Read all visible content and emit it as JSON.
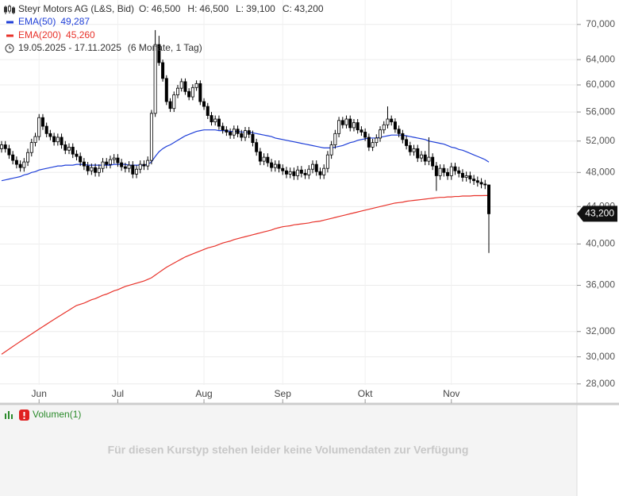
{
  "chart_data": {
    "type": "candlestick",
    "title": "Steyr Motors AG (L&S, Bid)",
    "ohlc_labels": [
      {
        "key": "O:",
        "label": "46,500"
      },
      {
        "key": "H:",
        "label": "46,500"
      },
      {
        "key": "L:",
        "label": "39,100"
      },
      {
        "key": "C:",
        "label": "43,200"
      }
    ],
    "period": "19.05.2025 - 17.11.2025",
    "interval": "(6 Monate, 1 Tag)",
    "categories": [
      null,
      null,
      null,
      null,
      null,
      null,
      null,
      null,
      null,
      null,
      "Jun",
      null,
      null,
      null,
      null,
      null,
      null,
      null,
      null,
      null,
      null,
      null,
      null,
      null,
      null,
      null,
      null,
      null,
      null,
      null,
      null,
      "Jul",
      null,
      null,
      null,
      null,
      null,
      null,
      null,
      null,
      null,
      null,
      null,
      null,
      null,
      null,
      null,
      null,
      null,
      null,
      null,
      null,
      null,
      null,
      "Aug",
      null,
      null,
      null,
      null,
      null,
      null,
      null,
      null,
      null,
      null,
      null,
      null,
      null,
      null,
      null,
      null,
      null,
      null,
      null,
      null,
      "Sep",
      null,
      null,
      null,
      null,
      null,
      null,
      null,
      null,
      null,
      null,
      null,
      null,
      null,
      null,
      null,
      null,
      null,
      null,
      null,
      null,
      null,
      "Okt",
      null,
      null,
      null,
      null,
      null,
      null,
      null,
      null,
      null,
      null,
      null,
      null,
      null,
      null,
      null,
      null,
      null,
      null,
      null,
      null,
      null,
      null,
      "Nov",
      null,
      null,
      null,
      null,
      null,
      null,
      null,
      null,
      null,
      null
    ],
    "open": [
      51000,
      51500,
      51000,
      50200,
      49500,
      49000,
      48600,
      49300,
      50500,
      51800,
      52600,
      55200,
      54000,
      53000,
      52600,
      51900,
      52500,
      51500,
      50800,
      51200,
      50300,
      50000,
      49300,
      48800,
      48200,
      48600,
      48000,
      48500,
      49300,
      49000,
      49600,
      49800,
      49200,
      48700,
      48500,
      48900,
      47800,
      48400,
      49000,
      48800,
      49500,
      55800,
      66500,
      63500,
      61000,
      57500,
      56500,
      58500,
      59500,
      60500,
      59000,
      58200,
      59600,
      60200,
      57500,
      56800,
      55500,
      54600,
      55000,
      54000,
      53500,
      53200,
      52800,
      53600,
      53000,
      52500,
      53400,
      52900,
      51800,
      50600,
      49400,
      49900,
      49200,
      48600,
      49000,
      48500,
      48200,
      47800,
      48100,
      47600,
      48300,
      47900,
      47700,
      48400,
      49000,
      48100,
      47700,
      48500,
      50200,
      51500,
      53000,
      54800,
      54200,
      55000,
      53800,
      54500,
      53500,
      53200,
      52500,
      51200,
      51800,
      52400,
      53500,
      54200,
      55000,
      54600,
      53600,
      53000,
      52200,
      51400,
      50600,
      51000,
      49800,
      50200,
      49400,
      49900,
      48800,
      47600,
      48500,
      48000,
      47600,
      48700,
      48200,
      47900,
      47400,
      47600,
      47200,
      47000,
      46800,
      46600,
      46500
    ],
    "high": [
      52000,
      52000,
      51500,
      50700,
      50000,
      49500,
      49800,
      51000,
      52300,
      53100,
      55700,
      55700,
      54500,
      53500,
      53100,
      53000,
      53000,
      52000,
      51700,
      51700,
      50800,
      50500,
      49800,
      49300,
      49100,
      49100,
      49000,
      49800,
      49800,
      50100,
      50300,
      50300,
      49700,
      49200,
      49400,
      49400,
      48900,
      49500,
      49500,
      50000,
      56300,
      69000,
      68000,
      64000,
      61500,
      58000,
      59000,
      60000,
      61000,
      61000,
      59500,
      60100,
      60700,
      60700,
      58000,
      57300,
      56000,
      55500,
      55500,
      54500,
      54000,
      53700,
      54100,
      54100,
      53500,
      53900,
      53900,
      53400,
      52300,
      51100,
      50400,
      50400,
      49700,
      49500,
      49500,
      49000,
      48700,
      48600,
      48600,
      48800,
      48800,
      48400,
      48900,
      49500,
      49500,
      48600,
      49000,
      50700,
      52000,
      53500,
      55300,
      55300,
      55500,
      55500,
      55000,
      55000,
      54000,
      53700,
      53000,
      52300,
      52900,
      54000,
      54700,
      56800,
      55500,
      55100,
      54100,
      53500,
      52700,
      51900,
      51500,
      51500,
      50700,
      50700,
      52500,
      50400,
      49300,
      49000,
      49000,
      48500,
      49200,
      49200,
      48700,
      48400,
      48100,
      48100,
      47700,
      47500,
      47300,
      47100,
      46500
    ],
    "low": [
      50500,
      50500,
      49700,
      49000,
      48500,
      48100,
      48100,
      48800,
      50000,
      51300,
      52100,
      53500,
      52500,
      52100,
      51400,
      51400,
      51000,
      50300,
      50300,
      49800,
      49500,
      48800,
      48300,
      47700,
      47700,
      47500,
      47500,
      48000,
      48500,
      48500,
      49100,
      48700,
      48200,
      48000,
      48000,
      47300,
      47300,
      47900,
      48300,
      48300,
      49000,
      55300,
      63000,
      60500,
      57000,
      56000,
      56000,
      58000,
      59000,
      58500,
      57700,
      57700,
      59100,
      57000,
      56300,
      55000,
      54100,
      54100,
      53500,
      53000,
      52700,
      52300,
      52300,
      52500,
      52000,
      52000,
      52400,
      51300,
      50100,
      48900,
      48900,
      48700,
      48100,
      48100,
      48000,
      47700,
      47300,
      47300,
      47100,
      47100,
      47400,
      47200,
      47200,
      47900,
      47600,
      47200,
      47200,
      48000,
      49700,
      51000,
      52500,
      53700,
      53700,
      53300,
      53300,
      53000,
      52700,
      52000,
      50700,
      50700,
      51300,
      51900,
      53000,
      53700,
      54100,
      53100,
      52500,
      51700,
      50900,
      50100,
      50100,
      49300,
      49300,
      48900,
      48900,
      48300,
      45800,
      47100,
      47500,
      47100,
      47100,
      47700,
      47400,
      46900,
      46900,
      46700,
      46500,
      46300,
      46100,
      46000,
      39100
    ],
    "close": [
      51500,
      51000,
      50200,
      49500,
      49000,
      48600,
      49300,
      50500,
      51800,
      52600,
      55200,
      54000,
      53000,
      52600,
      51900,
      52500,
      51500,
      50800,
      51200,
      50300,
      50000,
      49300,
      48800,
      48200,
      48600,
      48000,
      48500,
      49300,
      49000,
      49600,
      49800,
      49200,
      48700,
      48500,
      48900,
      47800,
      48400,
      49000,
      48800,
      49500,
      55800,
      66500,
      63500,
      61000,
      57500,
      56500,
      58500,
      59500,
      60500,
      59000,
      58200,
      59600,
      60200,
      57500,
      56800,
      55500,
      54600,
      55000,
      54000,
      53500,
      53200,
      52800,
      53600,
      53000,
      52500,
      53400,
      52900,
      51800,
      50600,
      49400,
      49900,
      49200,
      48600,
      49000,
      48500,
      48200,
      47800,
      48100,
      47600,
      48300,
      47900,
      47700,
      48400,
      49000,
      48100,
      47700,
      48500,
      50200,
      51500,
      53000,
      54800,
      54200,
      55000,
      53800,
      54500,
      53500,
      53200,
      52500,
      51200,
      51800,
      52400,
      53500,
      54200,
      55000,
      54600,
      53600,
      53000,
      52200,
      51400,
      50600,
      51000,
      49800,
      50200,
      49400,
      49900,
      48800,
      47600,
      48500,
      48000,
      47600,
      48700,
      48200,
      47900,
      47400,
      47600,
      47200,
      47000,
      46800,
      46600,
      46500,
      43200
    ],
    "up_color": "#ffffff",
    "down_color": "#000000",
    "series": [
      {
        "name": "EMA(50)",
        "color": "#1f3fd8",
        "value_label": "49,287",
        "values": [
          47000,
          47100,
          47200,
          47300,
          47400,
          47500,
          47700,
          47800,
          48000,
          48100,
          48300,
          48400,
          48500,
          48600,
          48700,
          48800,
          48800,
          48900,
          48900,
          48900,
          49000,
          49000,
          49000,
          48900,
          48900,
          48900,
          48900,
          48900,
          48900,
          48900,
          49000,
          49000,
          49000,
          49000,
          48900,
          48900,
          48900,
          48900,
          48900,
          49000,
          49300,
          50000,
          50600,
          51000,
          51300,
          51500,
          51800,
          52100,
          52400,
          52700,
          52900,
          53100,
          53300,
          53400,
          53500,
          53500,
          53500,
          53500,
          53400,
          53400,
          53400,
          53300,
          53300,
          53300,
          53200,
          53200,
          53200,
          53100,
          53000,
          52900,
          52800,
          52700,
          52600,
          52400,
          52300,
          52200,
          52100,
          52000,
          51900,
          51800,
          51700,
          51600,
          51500,
          51400,
          51300,
          51200,
          51100,
          51100,
          51100,
          51200,
          51300,
          51400,
          51600,
          51800,
          51900,
          52100,
          52200,
          52300,
          52400,
          52400,
          52400,
          52500,
          52600,
          52700,
          52800,
          52800,
          52800,
          52800,
          52700,
          52600,
          52500,
          52400,
          52300,
          52200,
          52000,
          51900,
          51800,
          51700,
          51600,
          51400,
          51200,
          51100,
          50900,
          50800,
          50600,
          50400,
          50200,
          50000,
          49800,
          49600,
          49287
        ]
      },
      {
        "name": "EMA(200)",
        "color": "#e8322a",
        "value_label": "45,260",
        "values": [
          30200,
          30400,
          30600,
          30800,
          31000,
          31200,
          31400,
          31600,
          31800,
          32000,
          32200,
          32400,
          32600,
          32800,
          33000,
          33200,
          33400,
          33600,
          33800,
          34000,
          34200,
          34300,
          34400,
          34550,
          34700,
          34800,
          34950,
          35100,
          35200,
          35350,
          35500,
          35600,
          35750,
          35900,
          36000,
          36100,
          36200,
          36300,
          36400,
          36550,
          36700,
          36950,
          37200,
          37450,
          37700,
          37900,
          38100,
          38300,
          38500,
          38700,
          38850,
          39000,
          39150,
          39300,
          39450,
          39600,
          39700,
          39800,
          39950,
          40100,
          40200,
          40300,
          40450,
          40550,
          40650,
          40750,
          40850,
          40950,
          41050,
          41150,
          41250,
          41350,
          41450,
          41600,
          41700,
          41800,
          41850,
          41900,
          42000,
          42050,
          42100,
          42150,
          42200,
          42300,
          42350,
          42400,
          42500,
          42600,
          42700,
          42800,
          42900,
          43000,
          43100,
          43200,
          43300,
          43400,
          43500,
          43600,
          43700,
          43800,
          43900,
          44000,
          44100,
          44200,
          44300,
          44400,
          44450,
          44500,
          44600,
          44650,
          44700,
          44750,
          44800,
          44850,
          44900,
          44950,
          45000,
          45050,
          45050,
          45100,
          45100,
          45150,
          45150,
          45200,
          45200,
          45200,
          45250,
          45250,
          45250,
          45260,
          45260
        ]
      }
    ],
    "ylim": [
      26660,
      74500
    ],
    "log_scale": true,
    "yticks": [
      {
        "value": 28000,
        "label": "28,000"
      },
      {
        "value": 30000,
        "label": "30,000"
      },
      {
        "value": 32000,
        "label": "32,000"
      },
      {
        "value": 36000,
        "label": "36,000"
      },
      {
        "value": 40000,
        "label": "40,000"
      },
      {
        "value": 44000,
        "label": "44,000"
      },
      {
        "value": 48000,
        "label": "48,000"
      },
      {
        "value": 52000,
        "label": "52,000"
      },
      {
        "value": 56000,
        "label": "56,000"
      },
      {
        "value": 60000,
        "label": "60,000"
      },
      {
        "value": 64000,
        "label": "64,000"
      },
      {
        "value": 70000,
        "label": "70,000"
      }
    ],
    "last_price": {
      "value": 43200,
      "label": "43,200"
    },
    "grid": true
  },
  "volume_panel": {
    "title": "Volumen(1)",
    "message": "Für diesen Kurstyp stehen leider keine Volumendaten zur Verfügung"
  }
}
